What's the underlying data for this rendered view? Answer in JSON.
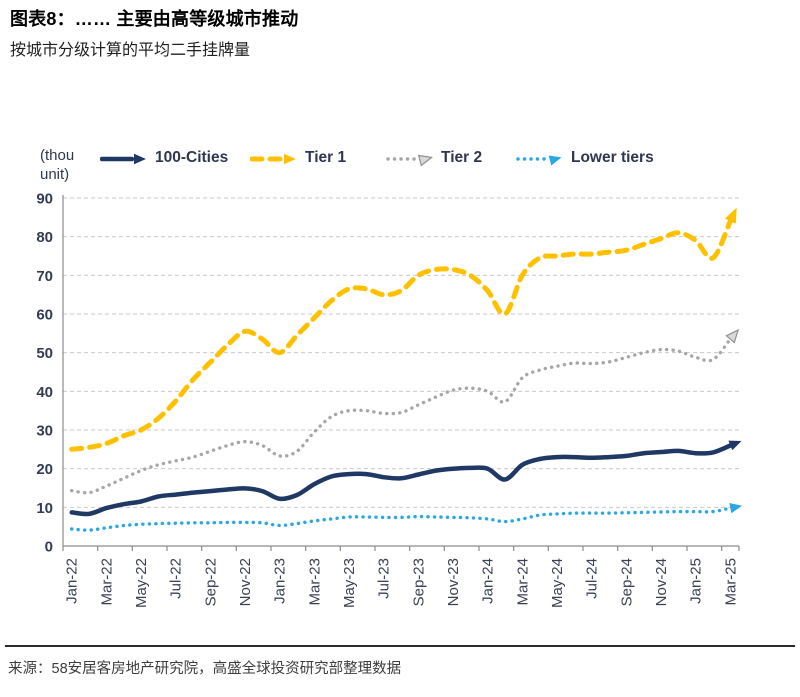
{
  "header": {
    "title": "图表8：…… 主要由高等级城市推动",
    "subtitle": "按城市分级计算的平均二手挂牌量"
  },
  "chart_data": {
    "type": "line",
    "title": "按城市分级计算的平均二手挂牌量",
    "unit_label_line1": "(thou",
    "unit_label_line2": "unit)",
    "ylim": [
      0,
      90
    ],
    "ytick_step": 10,
    "grid": "dashed-horizontal",
    "legend_position": "top",
    "categories": [
      "Jan-22",
      "Feb-22",
      "Mar-22",
      "Apr-22",
      "May-22",
      "Jun-22",
      "Jul-22",
      "Aug-22",
      "Sep-22",
      "Oct-22",
      "Nov-22",
      "Dec-22",
      "Jan-23",
      "Feb-23",
      "Mar-23",
      "Apr-23",
      "May-23",
      "Jun-23",
      "Jul-23",
      "Aug-23",
      "Sep-23",
      "Oct-23",
      "Nov-23",
      "Dec-23",
      "Jan-24",
      "Feb-24",
      "Mar-24",
      "Apr-24",
      "May-24",
      "Jun-24",
      "Jul-24",
      "Aug-24",
      "Sep-24",
      "Oct-24",
      "Nov-24",
      "Dec-24",
      "Jan-25",
      "Feb-25",
      "Mar-25"
    ],
    "x_labels_shown_every": 2,
    "series": [
      {
        "name": "100-Cities",
        "color": "#1f3864",
        "style": "solid",
        "values": [
          8.7,
          8.3,
          9.8,
          10.8,
          11.5,
          12.8,
          13.3,
          13.8,
          14.2,
          14.6,
          14.9,
          14.2,
          12.2,
          13.2,
          16.0,
          18.0,
          18.6,
          18.6,
          17.8,
          17.5,
          18.5,
          19.5,
          20.0,
          20.2,
          20.0,
          17.2,
          21.0,
          22.5,
          23.0,
          23.0,
          22.8,
          23.0,
          23.3,
          24.0,
          24.3,
          24.6,
          24.0,
          24.2,
          26.0
        ]
      },
      {
        "name": "Tier 1",
        "color": "#ffc000",
        "style": "dashed",
        "values": [
          25.0,
          25.5,
          26.5,
          28.5,
          30.0,
          33.0,
          37.5,
          43.0,
          47.5,
          52.0,
          55.5,
          53.5,
          50.0,
          54.5,
          59.0,
          63.5,
          66.5,
          66.5,
          65.0,
          66.0,
          70.0,
          71.5,
          71.5,
          70.0,
          66.0,
          60.0,
          70.0,
          74.5,
          75.0,
          75.5,
          75.5,
          76.0,
          76.5,
          78.0,
          79.5,
          81.0,
          79.0,
          74.5,
          84.0
        ]
      },
      {
        "name": "Tier 2",
        "color": "#a6a6a6",
        "style": "dotted",
        "values": [
          14.3,
          13.8,
          15.5,
          17.5,
          19.5,
          21.0,
          22.0,
          23.0,
          24.5,
          26.0,
          27.0,
          26.0,
          23.3,
          24.5,
          29.5,
          33.5,
          35.0,
          35.0,
          34.3,
          34.5,
          36.5,
          38.5,
          40.3,
          40.8,
          40.0,
          37.3,
          43.5,
          45.5,
          46.5,
          47.3,
          47.2,
          47.6,
          48.8,
          50.0,
          50.8,
          50.4,
          48.8,
          48.2,
          53.5
        ]
      },
      {
        "name": "Lower tiers",
        "color": "#29a8e2",
        "style": "dotted",
        "values": [
          4.4,
          4.1,
          4.7,
          5.3,
          5.6,
          5.8,
          5.9,
          6.0,
          6.0,
          6.1,
          6.1,
          6.0,
          5.3,
          5.8,
          6.5,
          7.0,
          7.5,
          7.5,
          7.4,
          7.4,
          7.6,
          7.5,
          7.4,
          7.3,
          7.0,
          6.3,
          7.0,
          8.0,
          8.3,
          8.5,
          8.5,
          8.5,
          8.6,
          8.7,
          8.8,
          8.9,
          8.9,
          8.9,
          9.8
        ]
      }
    ]
  },
  "footer": {
    "source": "来源：58安居客房地产研究院，高盛全球投资研究部整理数据"
  }
}
